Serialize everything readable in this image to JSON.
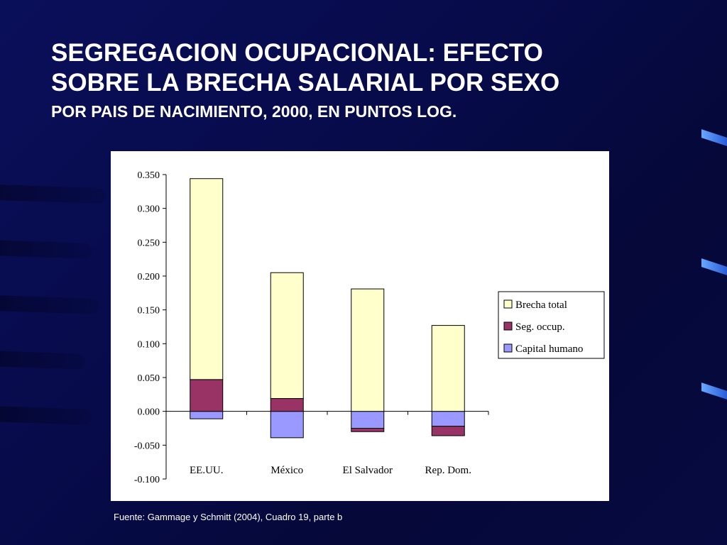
{
  "slide": {
    "title_line1": "SEGREGACION OCUPACIONAL:   EFECTO",
    "title_line2": "SOBRE LA BRECHA SALARIAL POR SEXO",
    "subtitle": "POR PAIS DE NACIMIENTO, 2000, EN PUNTOS LOG.",
    "source": "Fuente: Gammage y Schmitt (2004), Cuadro 19, parte b"
  },
  "chart_data": {
    "type": "bar",
    "stacked": true,
    "categories": [
      "EE.UU.",
      "México",
      "El Salvador",
      "Rep. Dom."
    ],
    "series": [
      {
        "name": "Brecha total",
        "color": "#ffffcc",
        "values": [
          0.297,
          0.186,
          0.181,
          0.127
        ]
      },
      {
        "name": "Seg. occup.",
        "color": "#993366",
        "values": [
          0.047,
          0.019,
          -0.005,
          -0.014
        ]
      },
      {
        "name": "Capital humano",
        "color": "#9999ff",
        "values": [
          -0.011,
          -0.039,
          -0.025,
          -0.022
        ]
      }
    ],
    "ylim": [
      -0.1,
      0.35
    ],
    "yticks": [
      "-0.100",
      "-0.050",
      "0.000",
      "0.050",
      "0.100",
      "0.150",
      "0.200",
      "0.250",
      "0.300",
      "0.350"
    ],
    "legend_position": "right",
    "grid": false,
    "title": "",
    "xlabel": "",
    "ylabel": ""
  }
}
